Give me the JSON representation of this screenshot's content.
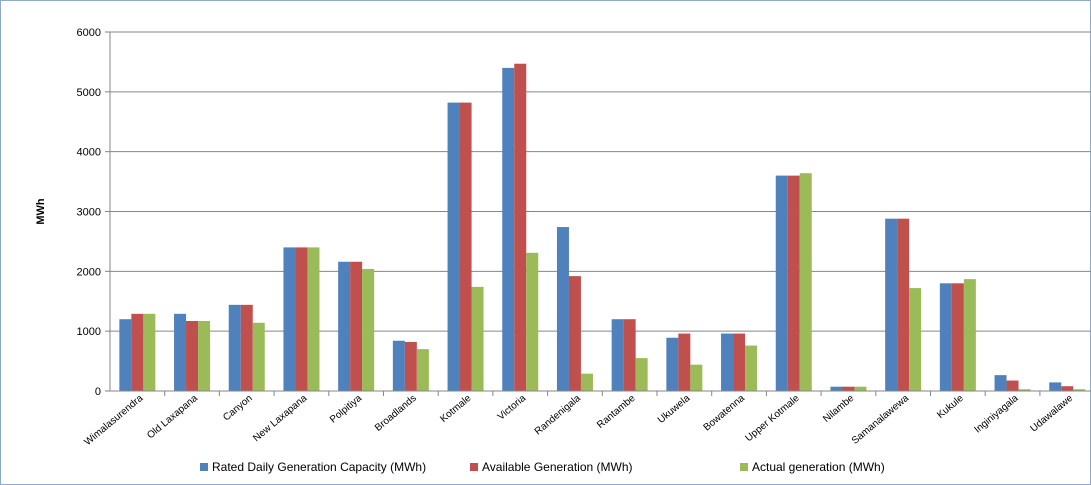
{
  "chart_data": {
    "type": "bar",
    "title": "",
    "xlabel": "",
    "ylabel": "MWh",
    "ylim": [
      0,
      6000
    ],
    "yticks": [
      0,
      1000,
      2000,
      3000,
      4000,
      5000,
      6000
    ],
    "grid": true,
    "legend_position": "bottom",
    "categories": [
      "Wimalasurendra",
      "Old Laxapana",
      "Canyon",
      "New Laxapana",
      "Polpitiya",
      "Broadlands",
      "Kotmale",
      "Victoria",
      "Randenigala",
      "Rantambe",
      "Ukuwela",
      "Bowatenna",
      "Upper Kotmale",
      "Nilambe",
      "Samanalawewa",
      "Kukule",
      "Inginiyagala",
      "Udawalawe"
    ],
    "series": [
      {
        "name": "Rated Daily Generation Capacity (MWh)",
        "color": "#4f81bd",
        "values": [
          1200,
          1290,
          1440,
          2400,
          2160,
          840,
          4820,
          5400,
          2740,
          1200,
          890,
          960,
          3600,
          72,
          2880,
          1800,
          265,
          144
        ]
      },
      {
        "name": "Available Generation (MWh)",
        "color": "#c0504d",
        "values": [
          1290,
          1170,
          1440,
          2400,
          2160,
          820,
          4820,
          5470,
          1920,
          1200,
          960,
          960,
          3600,
          72,
          2880,
          1800,
          175,
          80
        ]
      },
      {
        "name": "Actual generation (MWh)",
        "color": "#9bbb59",
        "values": [
          1290,
          1170,
          1140,
          2400,
          2040,
          700,
          1740,
          2310,
          290,
          550,
          440,
          760,
          3640,
          72,
          1720,
          1870,
          30,
          30
        ]
      }
    ]
  }
}
